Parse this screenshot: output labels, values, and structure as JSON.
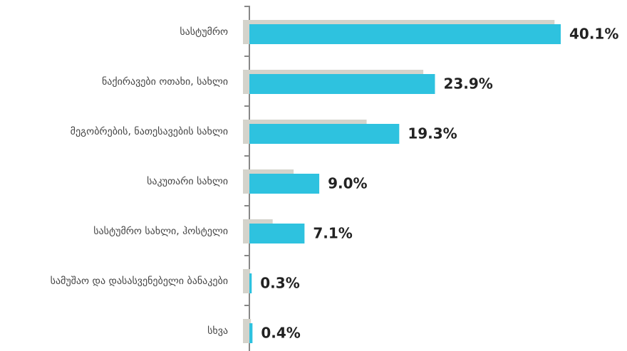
{
  "chart_data": {
    "type": "hbar",
    "categories": [
      "სასტუმრო",
      "ნაქირავები ოთახი, სახლი",
      "მეგობრების, ნათესავების სახლი",
      "საკუთარი სახლი",
      "სასტუმრო სახლი, ჰოსტელი",
      "სამუშაო და დასასვენებელი ბანაკები",
      "სხვა"
    ],
    "series": [
      {
        "color": "#d4d3cb",
        "values": [
          39.3,
          22.4,
          15.1,
          5.7,
          3.0,
          0.1,
          0.2
        ]
      },
      {
        "color": "#2ec2df",
        "values": [
          40.1,
          23.9,
          19.3,
          9.0,
          7.1,
          0.3,
          0.4
        ],
        "value_labels": [
          "40.1%",
          "23.9%",
          "19.3%",
          "9.0%",
          "7.1%",
          "0.3%",
          "0.4%"
        ]
      }
    ]
  }
}
